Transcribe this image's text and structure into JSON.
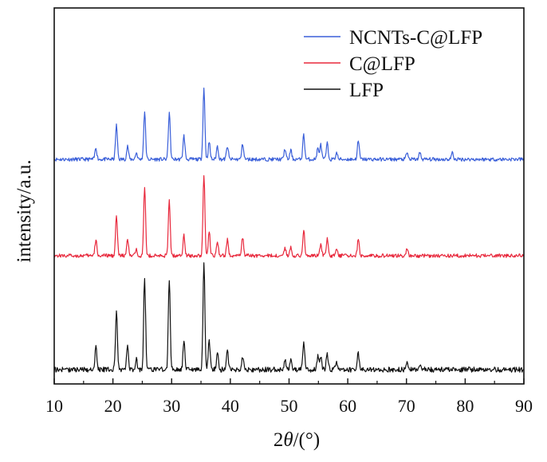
{
  "chart_data": {
    "type": "line",
    "title": "",
    "xlabel_prefix": "2",
    "xlabel_symbol": "θ",
    "xlabel_suffix": "/(°)",
    "ylabel": "intensity/a.u.",
    "xlim": [
      10,
      90
    ],
    "xticks": [
      10,
      20,
      30,
      40,
      50,
      60,
      70,
      80,
      90
    ],
    "y_ticks_shown": false,
    "grid": false,
    "legend_position": "top-right",
    "series": [
      {
        "name": "NCNTs-C@LFP",
        "color": "#3a5fd9",
        "baseline": 0.055,
        "noise": 0.014,
        "peaks": [
          [
            17.1,
            0.09
          ],
          [
            20.6,
            0.26
          ],
          [
            22.5,
            0.1
          ],
          [
            24.0,
            0.05
          ],
          [
            25.4,
            0.36
          ],
          [
            29.6,
            0.36
          ],
          [
            32.1,
            0.18
          ],
          [
            35.5,
            0.54
          ],
          [
            36.4,
            0.13
          ],
          [
            37.8,
            0.1
          ],
          [
            39.5,
            0.1
          ],
          [
            42.1,
            0.12
          ],
          [
            49.3,
            0.08
          ],
          [
            50.3,
            0.07
          ],
          [
            52.5,
            0.19
          ],
          [
            54.9,
            0.08
          ],
          [
            55.4,
            0.11
          ],
          [
            56.5,
            0.12
          ],
          [
            58.1,
            0.05
          ],
          [
            61.8,
            0.14
          ],
          [
            70.1,
            0.05
          ],
          [
            72.3,
            0.05
          ],
          [
            77.8,
            0.05
          ]
        ]
      },
      {
        "name": "C@LFP",
        "color": "#e8283c",
        "baseline": 0.055,
        "noise": 0.014,
        "peaks": [
          [
            17.1,
            0.12
          ],
          [
            20.6,
            0.3
          ],
          [
            22.5,
            0.12
          ],
          [
            24.0,
            0.05
          ],
          [
            25.4,
            0.52
          ],
          [
            29.6,
            0.42
          ],
          [
            32.1,
            0.16
          ],
          [
            35.5,
            0.62
          ],
          [
            36.4,
            0.18
          ],
          [
            37.8,
            0.1
          ],
          [
            39.5,
            0.12
          ],
          [
            42.1,
            0.14
          ],
          [
            49.3,
            0.06
          ],
          [
            50.3,
            0.07
          ],
          [
            52.5,
            0.2
          ],
          [
            55.4,
            0.09
          ],
          [
            56.5,
            0.13
          ],
          [
            58.1,
            0.06
          ],
          [
            61.8,
            0.12
          ],
          [
            70.1,
            0.05
          ]
        ]
      },
      {
        "name": "LFP",
        "color": "#111111",
        "baseline": 0.055,
        "noise": 0.016,
        "peaks": [
          [
            17.1,
            0.14
          ],
          [
            20.6,
            0.36
          ],
          [
            22.5,
            0.15
          ],
          [
            24.0,
            0.06
          ],
          [
            25.4,
            0.56
          ],
          [
            29.6,
            0.56
          ],
          [
            32.1,
            0.17
          ],
          [
            35.5,
            0.65
          ],
          [
            36.4,
            0.18
          ],
          [
            37.8,
            0.1
          ],
          [
            39.5,
            0.11
          ],
          [
            42.1,
            0.08
          ],
          [
            49.3,
            0.06
          ],
          [
            50.3,
            0.07
          ],
          [
            52.5,
            0.16
          ],
          [
            54.9,
            0.08
          ],
          [
            55.4,
            0.08
          ],
          [
            56.5,
            0.1
          ],
          [
            58.1,
            0.05
          ],
          [
            61.8,
            0.1
          ],
          [
            70.1,
            0.05
          ],
          [
            72.3,
            0.04
          ]
        ]
      }
    ]
  }
}
